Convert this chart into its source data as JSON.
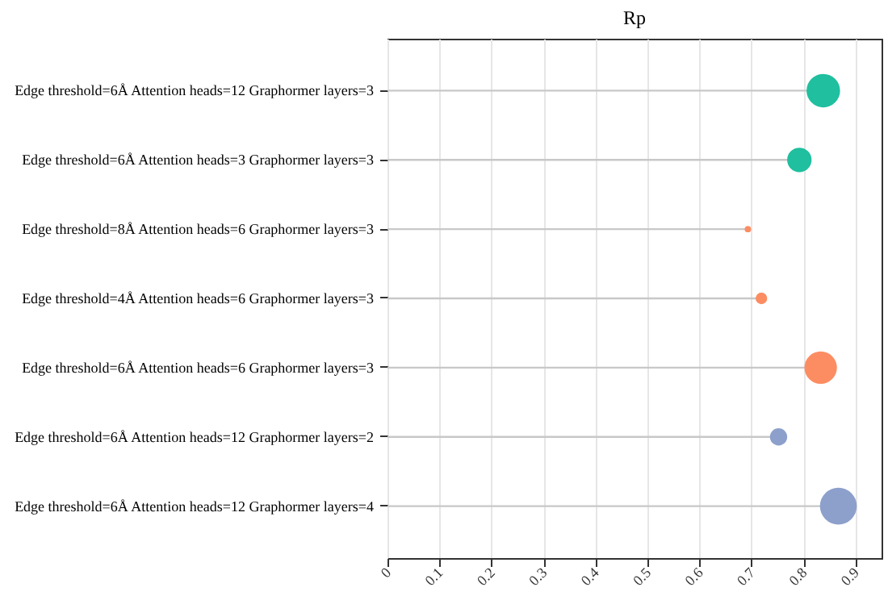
{
  "chart_data": {
    "type": "lollipop",
    "orientation": "horizontal",
    "title": "Rp",
    "categories": [
      "Edge threshold=6Å Attention heads=12 Graphormer layers=3",
      "Edge threshold=6Å Attention heads=3 Graphormer layers=3",
      "Edge threshold=8Å Attention heads=6 Graphormer layers=3",
      "Edge threshold=4Å Attention heads=6 Graphormer layers=3",
      "Edge threshold=6Å Attention heads=6 Graphormer layers=3",
      "Edge threshold=6Å Attention heads=12 Graphormer layers=2",
      "Edge threshold=6Å Attention heads=12 Graphormer layers=4"
    ],
    "values": [
      0.838,
      0.792,
      0.693,
      0.719,
      0.833,
      0.752,
      0.867
    ],
    "sizes": [
      0.83,
      0.44,
      0.03,
      0.1,
      0.78,
      0.22,
      1
    ],
    "colors": [
      "#1fbf9f",
      "#1fbf9f",
      "#fc8d62",
      "#fc8d62",
      "#fc8d62",
      "#8da0cb",
      "#8da0cb"
    ],
    "xlim": [
      0,
      0.95
    ],
    "xticks": [
      0,
      0.1,
      0.2,
      0.3,
      0.4,
      0.5,
      0.6,
      0.7,
      0.8,
      0.9
    ],
    "grid": "x",
    "marker": "circle"
  }
}
